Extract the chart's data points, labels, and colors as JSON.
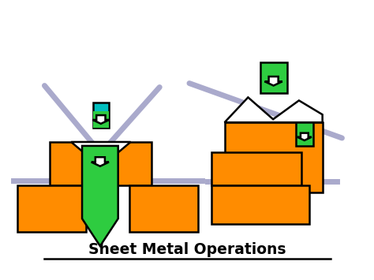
{
  "title": "Sheet Metal Operations",
  "bg_color": "#ffffff",
  "orange": "#FF8C00",
  "green": "#2ECC40",
  "teal": "#00BFBF",
  "gray": "#AAAACC",
  "black": "#000000"
}
